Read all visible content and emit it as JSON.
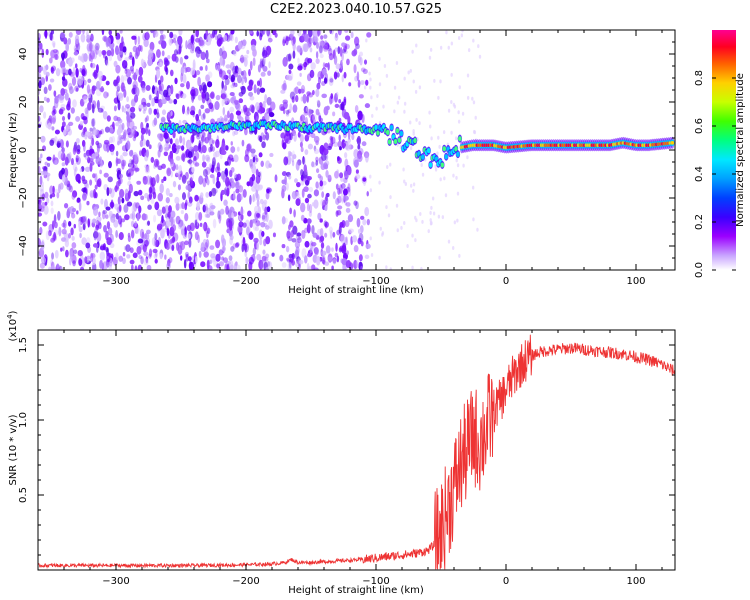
{
  "title": "C2E2.2023.040.10.57.G25",
  "chart_data": [
    {
      "type": "heatmap",
      "xlabel": "Height of straight line (km)",
      "ylabel": "Frequency (Hz)",
      "xlim": [
        -360,
        130
      ],
      "ylim": [
        -50,
        50
      ],
      "xticks": [
        -300,
        -200,
        -100,
        0,
        100
      ],
      "yticks": [
        -40,
        -20,
        0,
        20,
        40
      ],
      "colorbar": {
        "label": "Normalized spectral amplitude",
        "range": [
          0,
          1
        ],
        "ticks": [
          0.0,
          0.2,
          0.4,
          0.6,
          0.8
        ],
        "tick_labels": [
          "0.0",
          "0.2",
          "0.4",
          "0.6",
          "0.8"
        ],
        "colors": [
          "#ffffff",
          "#9b00ff",
          "#3a00ff",
          "#0066ff",
          "#00e0ff",
          "#00ff66",
          "#aaff00",
          "#ffee00",
          "#ff7700",
          "#ff0033",
          "#ff0090"
        ]
      },
      "signal_trace": {
        "x": [
          -265,
          -240,
          -200,
          -170,
          -140,
          -110,
          -95,
          -85,
          -75,
          -65,
          -58,
          -50,
          -45,
          -40,
          -35,
          -25,
          -10,
          0,
          20,
          50,
          80,
          90,
          100,
          110,
          128
        ],
        "y": [
          9,
          9,
          10,
          10,
          9,
          9,
          8,
          6,
          3,
          -1,
          -4,
          -3,
          -1,
          0,
          1,
          2,
          2,
          1,
          2,
          2,
          2,
          3,
          2,
          2,
          3
        ]
      },
      "noise_region": {
        "x_from": -360,
        "x_to": -110
      }
    },
    {
      "type": "line",
      "xlabel": "Height of straight line (km)",
      "ylabel": "SNR (10 * v/v)",
      "scale_label": "(x10",
      "scale_exponent": "4",
      "scale_suffix": ")",
      "xlim": [
        -360,
        130
      ],
      "ylim": [
        0,
        1.6
      ],
      "xticks": [
        -300,
        -200,
        -100,
        0,
        100
      ],
      "yticks": [
        0.5,
        1.0,
        1.5
      ],
      "ytick_labels": [
        "0.5",
        "1.0",
        "1.5"
      ],
      "color": "#ee3333",
      "series": [
        {
          "x": [
            -360,
            -320,
            -280,
            -240,
            -200,
            -180,
            -170,
            -165,
            -160,
            -150,
            -130,
            -110,
            -100,
            -90,
            -80,
            -70,
            -60,
            -55,
            -50,
            -45,
            -40,
            -35,
            -30,
            -25,
            -20,
            -15,
            -10,
            -5,
            0,
            5,
            10,
            15,
            20,
            25,
            30,
            40,
            50,
            60,
            70,
            80,
            90,
            100,
            110,
            120,
            128
          ],
          "y": [
            0.03,
            0.03,
            0.03,
            0.03,
            0.035,
            0.04,
            0.05,
            0.07,
            0.05,
            0.05,
            0.06,
            0.07,
            0.08,
            0.09,
            0.1,
            0.11,
            0.13,
            0.17,
            0.26,
            0.4,
            0.55,
            0.7,
            0.8,
            0.9,
            0.85,
            0.95,
            1.05,
            1.12,
            1.2,
            1.28,
            1.35,
            1.4,
            1.43,
            1.45,
            1.46,
            1.47,
            1.48,
            1.47,
            1.46,
            1.45,
            1.44,
            1.42,
            1.4,
            1.37,
            1.33
          ]
        }
      ]
    }
  ]
}
